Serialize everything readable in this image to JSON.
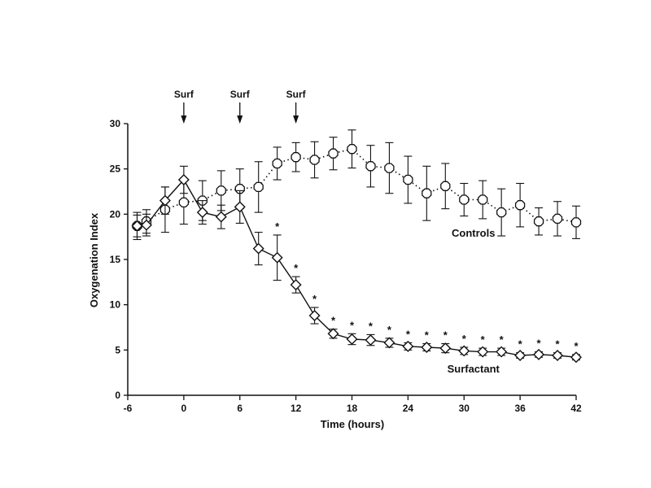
{
  "chart_data": {
    "type": "line",
    "title": "",
    "xlabel": "Time (hours)",
    "ylabel": "Oxygenation Index",
    "xlim": [
      -6,
      42
    ],
    "ylim": [
      0,
      30
    ],
    "xticks": [
      -6,
      0,
      6,
      12,
      18,
      24,
      30,
      36,
      42
    ],
    "yticks": [
      0,
      5,
      10,
      15,
      20,
      25,
      30
    ],
    "grid": false,
    "series": [
      {
        "name": "Controls",
        "line_style": "dotted",
        "marker": "octagon-open",
        "points": [
          {
            "x": -5,
            "y": 18.7,
            "err": 1.5
          },
          {
            "x": -4,
            "y": 19.2,
            "err": 1.3
          },
          {
            "x": -2,
            "y": 20.5,
            "err": 2.5
          },
          {
            "x": 0,
            "y": 21.3,
            "err": 2.4
          },
          {
            "x": 2,
            "y": 21.5,
            "err": 2.2
          },
          {
            "x": 4,
            "y": 22.6,
            "err": 2.2
          },
          {
            "x": 6,
            "y": 22.8,
            "err": 2.2
          },
          {
            "x": 8,
            "y": 23.0,
            "err": 2.8
          },
          {
            "x": 10,
            "y": 25.6,
            "err": 1.8
          },
          {
            "x": 12,
            "y": 26.3,
            "err": 1.6
          },
          {
            "x": 14,
            "y": 26.0,
            "err": 2.0
          },
          {
            "x": 16,
            "y": 26.7,
            "err": 1.8
          },
          {
            "x": 18,
            "y": 27.2,
            "err": 2.1
          },
          {
            "x": 20,
            "y": 25.3,
            "err": 2.3
          },
          {
            "x": 22,
            "y": 25.1,
            "err": 2.8
          },
          {
            "x": 24,
            "y": 23.8,
            "err": 2.6
          },
          {
            "x": 26,
            "y": 22.3,
            "err": 3.0
          },
          {
            "x": 28,
            "y": 23.1,
            "err": 2.5
          },
          {
            "x": 30,
            "y": 21.6,
            "err": 1.8
          },
          {
            "x": 32,
            "y": 21.6,
            "err": 2.1
          },
          {
            "x": 34,
            "y": 20.2,
            "err": 2.6
          },
          {
            "x": 36,
            "y": 21.0,
            "err": 2.4
          },
          {
            "x": 38,
            "y": 19.2,
            "err": 1.5
          },
          {
            "x": 40,
            "y": 19.5,
            "err": 1.9
          },
          {
            "x": 42,
            "y": 19.1,
            "err": 1.8
          }
        ]
      },
      {
        "name": "Surfactant",
        "line_style": "solid",
        "marker": "diamond-open",
        "points": [
          {
            "x": -5,
            "y": 18.7,
            "err": 1.2
          },
          {
            "x": -4,
            "y": 18.8,
            "err": 1.2
          },
          {
            "x": -2,
            "y": 21.5,
            "err": 1.5
          },
          {
            "x": 0,
            "y": 23.8,
            "err": 1.5
          },
          {
            "x": 2,
            "y": 20.2,
            "err": 1.3
          },
          {
            "x": 4,
            "y": 19.7,
            "err": 1.3
          },
          {
            "x": 6,
            "y": 20.8,
            "err": 1.8
          },
          {
            "x": 8,
            "y": 16.2,
            "err": 1.8
          },
          {
            "x": 10,
            "y": 15.2,
            "err": 2.5
          },
          {
            "x": 12,
            "y": 12.2,
            "err": 0.9
          },
          {
            "x": 14,
            "y": 8.8,
            "err": 0.9
          },
          {
            "x": 16,
            "y": 6.8,
            "err": 0.5
          },
          {
            "x": 18,
            "y": 6.2,
            "err": 0.6
          },
          {
            "x": 20,
            "y": 6.1,
            "err": 0.6
          },
          {
            "x": 22,
            "y": 5.8,
            "err": 0.5
          },
          {
            "x": 24,
            "y": 5.4,
            "err": 0.4
          },
          {
            "x": 26,
            "y": 5.3,
            "err": 0.4
          },
          {
            "x": 28,
            "y": 5.2,
            "err": 0.5
          },
          {
            "x": 30,
            "y": 4.9,
            "err": 0.4
          },
          {
            "x": 32,
            "y": 4.8,
            "err": 0.4
          },
          {
            "x": 34,
            "y": 4.8,
            "err": 0.4
          },
          {
            "x": 36,
            "y": 4.4,
            "err": 0.3
          },
          {
            "x": 38,
            "y": 4.5,
            "err": 0.3
          },
          {
            "x": 40,
            "y": 4.4,
            "err": 0.3
          },
          {
            "x": 42,
            "y": 4.2,
            "err": 0.3
          }
        ]
      }
    ],
    "series_labels": [
      {
        "text": "Controls",
        "x": 31,
        "y": 17.5
      },
      {
        "text": "Surfactant",
        "x": 31,
        "y": 2.5
      }
    ],
    "annotations": [
      {
        "text": "Surf",
        "x": 0,
        "type": "arrow"
      },
      {
        "text": "Surf",
        "x": 6,
        "type": "arrow"
      },
      {
        "text": "Surf",
        "x": 12,
        "type": "arrow"
      }
    ],
    "significance_marker": "*",
    "significant_x": [
      10,
      12,
      14,
      16,
      18,
      20,
      22,
      24,
      26,
      28,
      30,
      32,
      34,
      36,
      38,
      40,
      42
    ]
  }
}
